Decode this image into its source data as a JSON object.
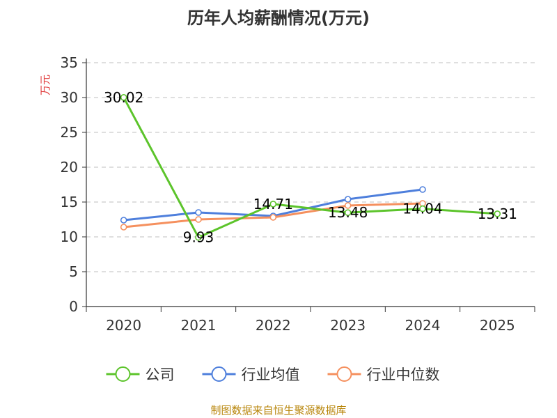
{
  "chart_data": {
    "type": "line",
    "title": "历年人均薪酬情况(万元)",
    "ylabel": "万元",
    "xlabel": "",
    "categories": [
      "2020",
      "2021",
      "2022",
      "2023",
      "2024",
      "2025"
    ],
    "ylim": [
      0,
      35
    ],
    "yticks": [
      0,
      5,
      10,
      15,
      20,
      25,
      30,
      35
    ],
    "grid": true,
    "legend_position": "bottom",
    "series": [
      {
        "name": "公司",
        "color": "#5cc42b",
        "values": [
          30.02,
          9.93,
          14.71,
          13.48,
          14.04,
          13.31
        ],
        "labels": [
          "30.02",
          "9.93",
          "14.71",
          "13.48",
          "14.04",
          "13.31"
        ]
      },
      {
        "name": "行业均值",
        "color": "#4e7fdc",
        "values": [
          12.4,
          13.5,
          13.0,
          15.4,
          16.8,
          null
        ]
      },
      {
        "name": "行业中位数",
        "color": "#f5905e",
        "values": [
          11.4,
          12.5,
          12.8,
          14.5,
          14.8,
          null
        ]
      }
    ],
    "source": "制图数据来自恒生聚源数据库"
  }
}
